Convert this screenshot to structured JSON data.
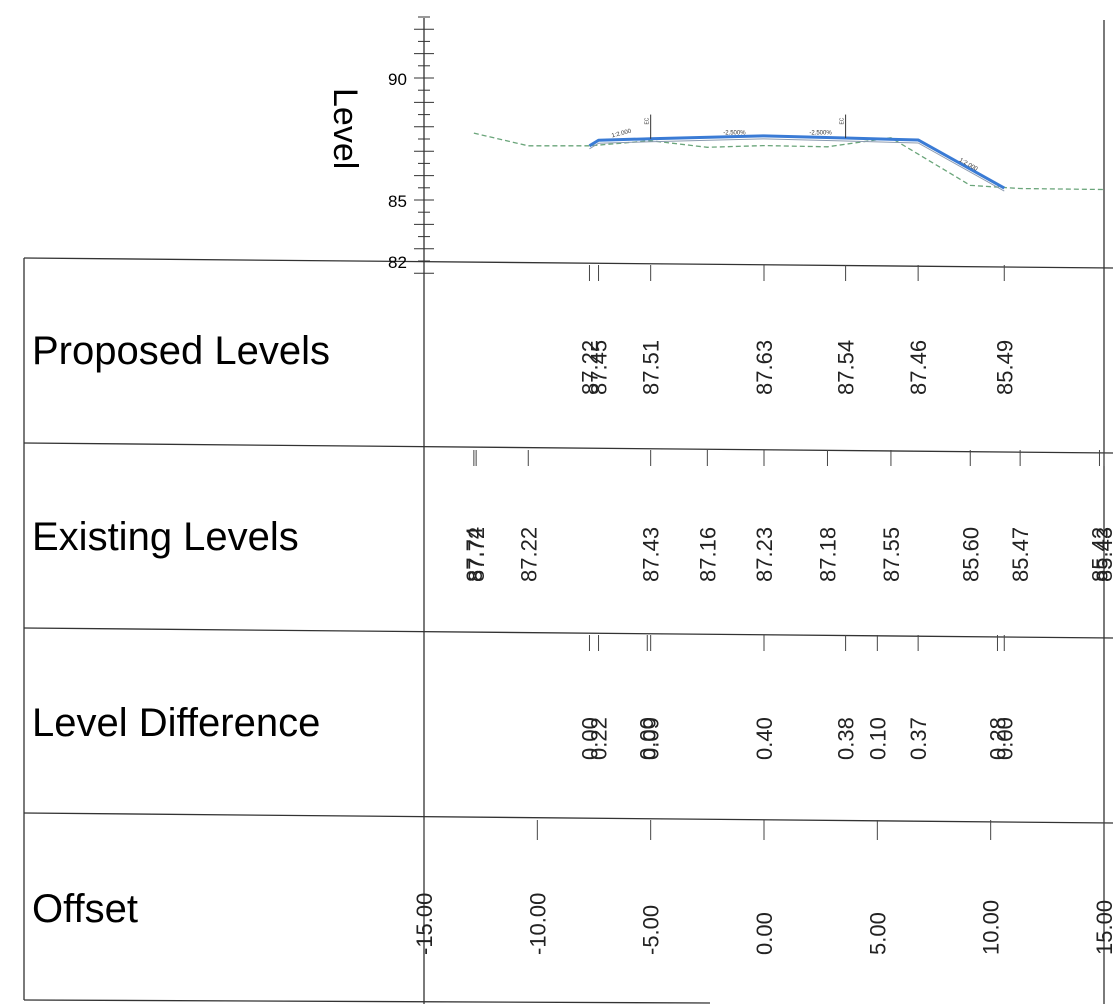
{
  "chart_data": {
    "type": "cross-section",
    "axis_label": "Level",
    "y_ticks": [
      "90",
      "85",
      "82"
    ],
    "y_range": [
      82,
      92
    ],
    "x_range": [
      -15,
      15
    ],
    "slope_labels": [
      "1:2.000",
      "-2.500%",
      "-2.500%",
      "1:2.000"
    ],
    "ec_labels": [
      "EC",
      "EC"
    ],
    "rows": {
      "proposed": {
        "label": "Proposed Levels",
        "points": [
          {
            "offset": -7.7,
            "value": "87.22"
          },
          {
            "offset": -7.3,
            "value": "87.45"
          },
          {
            "offset": -5.0,
            "value": "87.51"
          },
          {
            "offset": 0.0,
            "value": "87.63"
          },
          {
            "offset": 3.6,
            "value": "87.54"
          },
          {
            "offset": 6.8,
            "value": "87.46"
          },
          {
            "offset": 10.6,
            "value": "85.49"
          }
        ]
      },
      "existing": {
        "label": "Existing Levels",
        "points": [
          {
            "offset": -12.8,
            "value": "87.74"
          },
          {
            "offset": -12.7,
            "value": "87.72"
          },
          {
            "offset": -10.4,
            "value": "87.22"
          },
          {
            "offset": -5.0,
            "value": "87.43"
          },
          {
            "offset": -2.5,
            "value": "87.16"
          },
          {
            "offset": 0.0,
            "value": "87.23"
          },
          {
            "offset": 2.8,
            "value": "87.18"
          },
          {
            "offset": 5.6,
            "value": "87.55"
          },
          {
            "offset": 9.1,
            "value": "85.60"
          },
          {
            "offset": 11.3,
            "value": "85.47"
          },
          {
            "offset": 14.8,
            "value": "85.42"
          },
          {
            "offset": 15.0,
            "value": "85.43"
          }
        ]
      },
      "difference": {
        "label": "Level Difference",
        "points": [
          {
            "offset": -7.7,
            "value": "0.00"
          },
          {
            "offset": -7.3,
            "value": "0.22"
          },
          {
            "offset": -5.15,
            "value": "0.00"
          },
          {
            "offset": -5.0,
            "value": "0.09"
          },
          {
            "offset": 0.0,
            "value": "0.40"
          },
          {
            "offset": 3.6,
            "value": "0.38"
          },
          {
            "offset": 5.0,
            "value": "0.10"
          },
          {
            "offset": 6.8,
            "value": "0.37"
          },
          {
            "offset": 10.3,
            "value": "0.28"
          },
          {
            "offset": 10.6,
            "value": "0.00"
          }
        ]
      },
      "offset": {
        "label": "Offset",
        "ticks": [
          "-15.00",
          "-10.00",
          "-5.00",
          "0.00",
          "5.00",
          "10.00",
          "15.00"
        ]
      }
    },
    "proposed_profile": [
      {
        "x": -7.7,
        "y": 87.22
      },
      {
        "x": -7.3,
        "y": 87.45
      },
      {
        "x": -5.0,
        "y": 87.51
      },
      {
        "x": 0.0,
        "y": 87.63
      },
      {
        "x": 3.6,
        "y": 87.54
      },
      {
        "x": 6.8,
        "y": 87.46
      },
      {
        "x": 10.6,
        "y": 85.49
      }
    ],
    "existing_profile": [
      {
        "x": -12.8,
        "y": 87.74
      },
      {
        "x": -10.4,
        "y": 87.22
      },
      {
        "x": -7.7,
        "y": 87.22
      },
      {
        "x": -5.0,
        "y": 87.43
      },
      {
        "x": -2.5,
        "y": 87.16
      },
      {
        "x": 0.0,
        "y": 87.23
      },
      {
        "x": 2.8,
        "y": 87.18
      },
      {
        "x": 5.6,
        "y": 87.55
      },
      {
        "x": 9.1,
        "y": 85.6
      },
      {
        "x": 11.3,
        "y": 85.47
      },
      {
        "x": 15.0,
        "y": 85.43
      }
    ],
    "colors": {
      "proposed": "#3a7bd5",
      "existing": "#6aa57a",
      "grid": "#333333"
    }
  }
}
